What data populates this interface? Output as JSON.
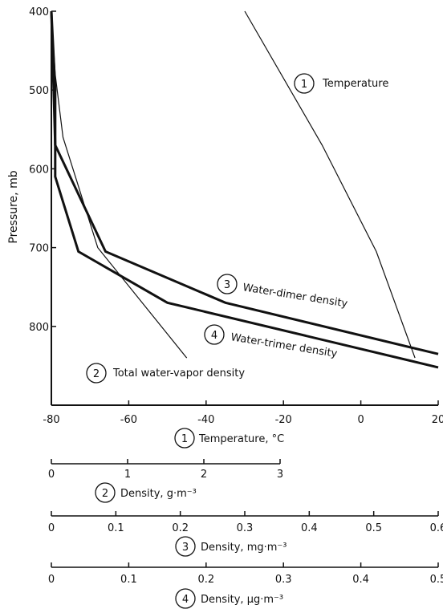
{
  "chart_data": {
    "type": "line",
    "ylabel": "Pressure, mb",
    "y_axis": {
      "range": [
        400,
        900
      ],
      "ticks": [
        400,
        500,
        600,
        700,
        800
      ],
      "inverted": true
    },
    "x_axis": {
      "range": [
        -80,
        20
      ],
      "ticks": [
        -80,
        -60,
        -40,
        -20,
        0,
        20
      ]
    },
    "grid": false,
    "series": [
      {
        "id": "1",
        "name": "Temperature",
        "width": "thin",
        "x": [
          -30,
          -10,
          4,
          14
        ],
        "y": [
          400,
          570,
          705,
          840
        ]
      },
      {
        "id": "2",
        "name": "Total water-vapor density",
        "width": "thin",
        "x": [
          -80,
          -79,
          -77,
          -68,
          -45
        ],
        "y": [
          400,
          480,
          560,
          700,
          840
        ]
      },
      {
        "id": "3",
        "name": "Water-dimer density",
        "width": "thick",
        "x": [
          -80,
          -79,
          -66,
          -35,
          20
        ],
        "y": [
          400,
          570,
          705,
          770,
          835
        ]
      },
      {
        "id": "4",
        "name": "Water-trimer density",
        "width": "thick",
        "x": [
          -80,
          -79,
          -79,
          -73,
          -50,
          20
        ],
        "y": [
          400,
          500,
          610,
          705,
          770,
          852
        ]
      }
    ],
    "scales": [
      {
        "id": "1",
        "label": "Temperature, °C",
        "ticks": [
          "-80",
          "-60",
          "-40",
          "-20",
          "0",
          "20"
        ],
        "range": [
          -80,
          20
        ]
      },
      {
        "id": "2",
        "label": "Density, g·m⁻³",
        "ticks": [
          "0",
          "1",
          "2",
          "3"
        ],
        "range": [
          0,
          3
        ]
      },
      {
        "id": "3",
        "label": "Density, mg·m⁻³",
        "ticks": [
          "0",
          "0.1",
          "0.2",
          "0.3",
          "0.4",
          "0.5",
          "0.6"
        ],
        "range": [
          0,
          0.6
        ]
      },
      {
        "id": "4",
        "label": "Density, µg·m⁻³",
        "ticks": [
          "0",
          "0.1",
          "0.2",
          "0.3",
          "0.4",
          "0.5"
        ],
        "range": [
          0,
          0.5
        ]
      }
    ]
  }
}
